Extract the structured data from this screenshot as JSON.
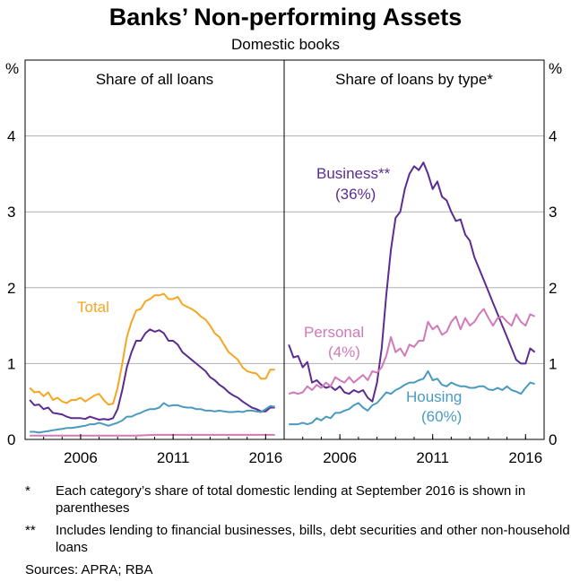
{
  "title": "Banks’ Non-performing Assets",
  "subtitle": "Domestic books",
  "notes": [
    {
      "mark": "*",
      "text": "Each category’s share of total domestic lending at September 2016 is shown in parentheses"
    },
    {
      "mark": "**",
      "text": "Includes lending to financial businesses, bills, debt securities and other non-household loans"
    }
  ],
  "sources": "Sources: APRA; RBA",
  "colors": {
    "orange": "#f5a623",
    "purple": "#5b2d90",
    "blue": "#4a9ac0",
    "pink": "#d279b8",
    "grid": "#b0b0b0"
  },
  "chart_data": [
    {
      "type": "line",
      "title": "Share of all loans",
      "ylabel": "%",
      "ylim": [
        0,
        5
      ],
      "yticks": [
        "0",
        "1",
        "2",
        "3",
        "4"
      ],
      "xlim": [
        2003.0,
        2017.0
      ],
      "xticks": [
        "2006",
        "2011",
        "2016"
      ],
      "series": [
        {
          "name": "Total",
          "color": "#f5a623",
          "x": [
            2003.25,
            2003.5,
            2003.75,
            2004.0,
            2004.25,
            2004.5,
            2004.75,
            2005.0,
            2005.25,
            2005.5,
            2005.75,
            2006.0,
            2006.25,
            2006.5,
            2006.75,
            2007.0,
            2007.25,
            2007.5,
            2007.75,
            2008.0,
            2008.25,
            2008.5,
            2008.75,
            2009.0,
            2009.25,
            2009.5,
            2009.75,
            2010.0,
            2010.25,
            2010.5,
            2010.75,
            2011.0,
            2011.25,
            2011.5,
            2011.75,
            2012.0,
            2012.25,
            2012.5,
            2012.75,
            2013.0,
            2013.25,
            2013.5,
            2013.75,
            2014.0,
            2014.25,
            2014.5,
            2014.75,
            2015.0,
            2015.25,
            2015.5,
            2015.75,
            2016.0,
            2016.25,
            2016.5
          ],
          "y": [
            0.68,
            0.62,
            0.63,
            0.57,
            0.62,
            0.52,
            0.55,
            0.5,
            0.48,
            0.52,
            0.52,
            0.55,
            0.5,
            0.54,
            0.58,
            0.6,
            0.52,
            0.46,
            0.47,
            0.68,
            1.0,
            1.35,
            1.55,
            1.7,
            1.72,
            1.82,
            1.85,
            1.9,
            1.9,
            1.92,
            1.85,
            1.85,
            1.88,
            1.78,
            1.75,
            1.72,
            1.68,
            1.62,
            1.58,
            1.5,
            1.4,
            1.35,
            1.25,
            1.15,
            1.1,
            1.05,
            0.95,
            0.9,
            0.88,
            0.87,
            0.8,
            0.8,
            0.92,
            0.92
          ]
        },
        {
          "name": "",
          "color": "#5b2d90",
          "x": [
            2003.25,
            2003.5,
            2003.75,
            2004.0,
            2004.25,
            2004.5,
            2004.75,
            2005.0,
            2005.25,
            2005.5,
            2005.75,
            2006.0,
            2006.25,
            2006.5,
            2006.75,
            2007.0,
            2007.25,
            2007.5,
            2007.75,
            2008.0,
            2008.25,
            2008.5,
            2008.75,
            2009.0,
            2009.25,
            2009.5,
            2009.75,
            2010.0,
            2010.25,
            2010.5,
            2010.75,
            2011.0,
            2011.25,
            2011.5,
            2011.75,
            2012.0,
            2012.25,
            2012.5,
            2012.75,
            2013.0,
            2013.25,
            2013.5,
            2013.75,
            2014.0,
            2014.25,
            2014.5,
            2014.75,
            2015.0,
            2015.25,
            2015.5,
            2015.75,
            2016.0,
            2016.25,
            2016.5
          ],
          "y": [
            0.52,
            0.45,
            0.46,
            0.4,
            0.42,
            0.35,
            0.34,
            0.33,
            0.3,
            0.28,
            0.28,
            0.28,
            0.27,
            0.3,
            0.28,
            0.26,
            0.27,
            0.26,
            0.28,
            0.4,
            0.65,
            0.95,
            1.15,
            1.3,
            1.3,
            1.4,
            1.45,
            1.42,
            1.44,
            1.4,
            1.3,
            1.3,
            1.25,
            1.15,
            1.1,
            1.05,
            1.0,
            0.95,
            0.9,
            0.82,
            0.78,
            0.72,
            0.68,
            0.62,
            0.58,
            0.55,
            0.5,
            0.46,
            0.42,
            0.4,
            0.37,
            0.37,
            0.42,
            0.42
          ]
        },
        {
          "name": "",
          "color": "#4a9ac0",
          "x": [
            2003.25,
            2003.5,
            2003.75,
            2004.0,
            2004.25,
            2004.5,
            2004.75,
            2005.0,
            2005.25,
            2005.5,
            2005.75,
            2006.0,
            2006.25,
            2006.5,
            2006.75,
            2007.0,
            2007.25,
            2007.5,
            2007.75,
            2008.0,
            2008.25,
            2008.5,
            2008.75,
            2009.0,
            2009.25,
            2009.5,
            2009.75,
            2010.0,
            2010.25,
            2010.5,
            2010.75,
            2011.0,
            2011.25,
            2011.5,
            2011.75,
            2012.0,
            2012.25,
            2012.5,
            2012.75,
            2013.0,
            2013.25,
            2013.5,
            2013.75,
            2014.0,
            2014.25,
            2014.5,
            2014.75,
            2015.0,
            2015.25,
            2015.5,
            2015.75,
            2016.0,
            2016.25,
            2016.5
          ],
          "y": [
            0.1,
            0.1,
            0.09,
            0.1,
            0.11,
            0.12,
            0.13,
            0.14,
            0.15,
            0.15,
            0.16,
            0.17,
            0.18,
            0.2,
            0.2,
            0.22,
            0.2,
            0.18,
            0.2,
            0.22,
            0.25,
            0.3,
            0.3,
            0.33,
            0.35,
            0.38,
            0.4,
            0.4,
            0.42,
            0.48,
            0.44,
            0.45,
            0.45,
            0.43,
            0.42,
            0.42,
            0.4,
            0.4,
            0.38,
            0.38,
            0.37,
            0.38,
            0.37,
            0.36,
            0.36,
            0.37,
            0.36,
            0.38,
            0.38,
            0.37,
            0.36,
            0.4,
            0.44,
            0.43
          ]
        },
        {
          "name": "",
          "color": "#d279b8",
          "x": [
            2003.25,
            2004.0,
            2005.0,
            2006.0,
            2007.0,
            2008.0,
            2009.0,
            2010.0,
            2011.0,
            2012.0,
            2013.0,
            2014.0,
            2015.0,
            2016.0,
            2016.5
          ],
          "y": [
            0.05,
            0.05,
            0.05,
            0.05,
            0.05,
            0.05,
            0.05,
            0.06,
            0.06,
            0.06,
            0.06,
            0.06,
            0.06,
            0.06,
            0.06
          ]
        }
      ],
      "annotations": [
        {
          "text": "Total",
          "color": "#f5a623"
        }
      ]
    },
    {
      "type": "line",
      "title": "Share of loans by type*",
      "ylabel": "%",
      "ylim": [
        0,
        5
      ],
      "yticks": [
        "0",
        "1",
        "2",
        "3",
        "4"
      ],
      "xlim": [
        2003.0,
        2017.0
      ],
      "xticks": [
        "2006",
        "2011",
        "2016"
      ],
      "series": [
        {
          "name": "Business**",
          "color": "#5b2d90",
          "x": [
            2003.25,
            2003.5,
            2003.75,
            2004.0,
            2004.25,
            2004.5,
            2004.75,
            2005.0,
            2005.25,
            2005.5,
            2005.75,
            2006.0,
            2006.25,
            2006.5,
            2006.75,
            2007.0,
            2007.25,
            2007.5,
            2007.75,
            2008.0,
            2008.25,
            2008.5,
            2008.75,
            2009.0,
            2009.25,
            2009.5,
            2009.75,
            2010.0,
            2010.25,
            2010.5,
            2010.75,
            2011.0,
            2011.25,
            2011.5,
            2011.75,
            2012.0,
            2012.25,
            2012.5,
            2012.75,
            2013.0,
            2013.25,
            2013.5,
            2013.75,
            2014.0,
            2014.25,
            2014.5,
            2014.75,
            2015.0,
            2015.25,
            2015.5,
            2015.75,
            2016.0,
            2016.25,
            2016.5
          ],
          "y": [
            1.25,
            1.08,
            1.1,
            0.95,
            1.02,
            0.75,
            0.78,
            0.72,
            0.68,
            0.7,
            0.65,
            0.7,
            0.62,
            0.6,
            0.65,
            0.62,
            0.65,
            0.55,
            0.5,
            0.75,
            1.2,
            1.9,
            2.5,
            2.92,
            3.0,
            3.3,
            3.5,
            3.6,
            3.55,
            3.65,
            3.5,
            3.3,
            3.4,
            3.2,
            3.15,
            3.0,
            2.88,
            2.9,
            2.7,
            2.62,
            2.4,
            2.25,
            2.1,
            1.95,
            1.8,
            1.65,
            1.5,
            1.35,
            1.2,
            1.05,
            1.0,
            1.0,
            1.2,
            1.15
          ]
        },
        {
          "name": "Personal",
          "color": "#d279b8",
          "x": [
            2003.25,
            2003.5,
            2003.75,
            2004.0,
            2004.25,
            2004.5,
            2004.75,
            2005.0,
            2005.25,
            2005.5,
            2005.75,
            2006.0,
            2006.25,
            2006.5,
            2006.75,
            2007.0,
            2007.25,
            2007.5,
            2007.75,
            2008.0,
            2008.25,
            2008.5,
            2008.75,
            2009.0,
            2009.25,
            2009.5,
            2009.75,
            2010.0,
            2010.25,
            2010.5,
            2010.75,
            2011.0,
            2011.25,
            2011.5,
            2011.75,
            2012.0,
            2012.25,
            2012.5,
            2012.75,
            2013.0,
            2013.25,
            2013.5,
            2013.75,
            2014.0,
            2014.25,
            2014.5,
            2014.75,
            2015.0,
            2015.25,
            2015.5,
            2015.75,
            2016.0,
            2016.25,
            2016.5
          ],
          "y": [
            0.6,
            0.62,
            0.6,
            0.62,
            0.7,
            0.65,
            0.72,
            0.68,
            0.75,
            0.7,
            0.82,
            0.78,
            0.75,
            0.82,
            0.75,
            0.8,
            0.85,
            0.78,
            0.9,
            0.88,
            0.95,
            1.1,
            1.35,
            1.15,
            1.2,
            1.1,
            1.25,
            1.22,
            1.3,
            1.3,
            1.55,
            1.45,
            1.5,
            1.38,
            1.42,
            1.55,
            1.62,
            1.45,
            1.6,
            1.5,
            1.55,
            1.65,
            1.72,
            1.6,
            1.5,
            1.6,
            1.62,
            1.55,
            1.5,
            1.65,
            1.55,
            1.5,
            1.65,
            1.62
          ]
        },
        {
          "name": "Housing",
          "color": "#4a9ac0",
          "x": [
            2003.25,
            2003.5,
            2003.75,
            2004.0,
            2004.25,
            2004.5,
            2004.75,
            2005.0,
            2005.25,
            2005.5,
            2005.75,
            2006.0,
            2006.25,
            2006.5,
            2006.75,
            2007.0,
            2007.25,
            2007.5,
            2007.75,
            2008.0,
            2008.25,
            2008.5,
            2008.75,
            2009.0,
            2009.25,
            2009.5,
            2009.75,
            2010.0,
            2010.25,
            2010.5,
            2010.75,
            2011.0,
            2011.25,
            2011.5,
            2011.75,
            2012.0,
            2012.25,
            2012.5,
            2012.75,
            2013.0,
            2013.25,
            2013.5,
            2013.75,
            2014.0,
            2014.25,
            2014.5,
            2014.75,
            2015.0,
            2015.25,
            2015.5,
            2015.75,
            2016.0,
            2016.25,
            2016.5
          ],
          "y": [
            0.2,
            0.2,
            0.2,
            0.22,
            0.2,
            0.22,
            0.28,
            0.25,
            0.3,
            0.28,
            0.35,
            0.35,
            0.38,
            0.4,
            0.45,
            0.48,
            0.42,
            0.38,
            0.45,
            0.48,
            0.55,
            0.62,
            0.6,
            0.65,
            0.68,
            0.72,
            0.75,
            0.75,
            0.78,
            0.8,
            0.9,
            0.78,
            0.8,
            0.72,
            0.7,
            0.75,
            0.72,
            0.7,
            0.7,
            0.68,
            0.68,
            0.7,
            0.7,
            0.66,
            0.65,
            0.68,
            0.65,
            0.7,
            0.65,
            0.63,
            0.6,
            0.68,
            0.75,
            0.73
          ]
        }
      ],
      "annotations": [
        {
          "text": "Business**",
          "color": "#5b2d90"
        },
        {
          "text": "(36%)",
          "color": "#5b2d90"
        },
        {
          "text": "Personal",
          "color": "#d279b8"
        },
        {
          "text": "(4%)",
          "color": "#d279b8"
        },
        {
          "text": "Housing",
          "color": "#4a9ac0"
        },
        {
          "text": "(60%)",
          "color": "#4a9ac0"
        }
      ]
    }
  ]
}
